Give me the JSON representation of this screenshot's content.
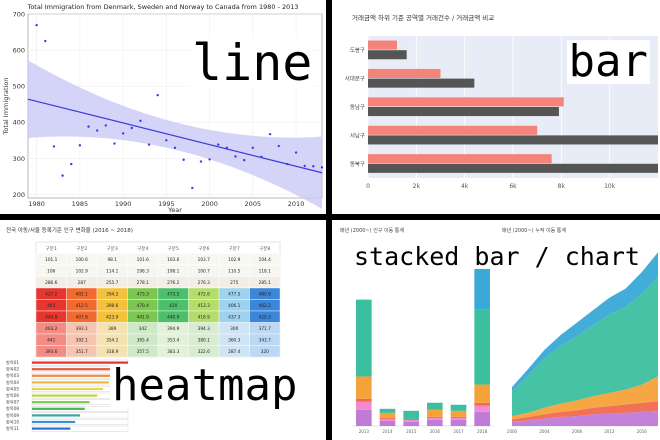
{
  "overlays": {
    "line": "line",
    "bar": "bar",
    "heatmap": "heatmap",
    "stacked": "stacked bar / chart"
  },
  "chart_data": [
    {
      "type": "scatter",
      "title": "Total Immigration from Denmark, Sweden and Norway to Canada from 1980 - 2013",
      "xlabel": "Year",
      "ylabel": "Total Immigration",
      "xlim": [
        1979,
        2013
      ],
      "ylim": [
        190,
        700
      ],
      "xticks": [
        1980,
        1985,
        1990,
        1995,
        2000,
        2005,
        2010
      ],
      "yticks": [
        200,
        300,
        400,
        500,
        600,
        700
      ],
      "x": [
        1980,
        1981,
        1982,
        1983,
        1984,
        1985,
        1986,
        1987,
        1988,
        1989,
        1990,
        1991,
        1992,
        1993,
        1994,
        1995,
        1996,
        1997,
        1998,
        1999,
        2000,
        2001,
        2002,
        2003,
        2004,
        2005,
        2006,
        2007,
        2008,
        2009,
        2010,
        2011,
        2012,
        2013
      ],
      "y": [
        669,
        625,
        333,
        252,
        284,
        336,
        388,
        377,
        391,
        341,
        369,
        384,
        404,
        338,
        475,
        350,
        329,
        296,
        218,
        291,
        297,
        338,
        329,
        305,
        295,
        329,
        304,
        367,
        334,
        284,
        316,
        279,
        278,
        275
      ],
      "trend": {
        "start": [
          1980,
          458
        ],
        "end": [
          2013,
          260
        ]
      },
      "colors": {
        "points": "#3b3be0",
        "trend": "#3a3adf",
        "band": "#c9c9f7"
      }
    },
    {
      "type": "bar",
      "orientation": "horizontal",
      "title": "거래금액 하위 기준 공역별 거래건수 / 거래금액 비교",
      "categories": [
        "도봉구",
        "서대문구",
        "동남구",
        "서남구",
        "동북구"
      ],
      "series": [
        {
          "values": [
            1200,
            3000,
            8100,
            7000,
            7600
          ],
          "color": "#f4837a"
        },
        {
          "values": [
            1600,
            4400,
            7900,
            12000,
            12000
          ],
          "color": "#555555"
        }
      ],
      "xlim": [
        0,
        12000
      ],
      "xticks": [
        0,
        2000,
        4000,
        6000,
        8000,
        10000
      ],
      "xtick_labels": [
        "0",
        "2k",
        "4k",
        "6k",
        "8k",
        "10k"
      ],
      "grid": true
    },
    {
      "type": "heatmap",
      "title": "전국 아동/서울 등록기준 인구 변화율 (2016 ~ 2018)",
      "columns": [
        "구분1",
        "구분2",
        "구분3",
        "구분4",
        "구분5",
        "구분6",
        "구분7",
        "구분8"
      ],
      "values": [
        [
          101.1,
          100.6,
          98.1,
          101.6,
          103.6,
          103.7,
          102.9,
          104.4
        ],
        [
          106.0,
          102.9,
          114.1,
          198.3,
          198.1,
          100.7,
          110.5,
          118.1
        ],
        [
          286.6,
          287.0,
          255.7,
          278.1,
          276.2,
          276.3,
          275.0,
          285.1
        ],
        [
          427.2,
          402.1,
          394.2,
          473.3,
          473.5,
          472.6,
          477.5,
          480.9
        ],
        [
          403.0,
          412.5,
          398.6,
          470.4,
          420.0,
          413.3,
          406.1,
          402.2
        ],
        [
          440.8,
          407.8,
          423.9,
          441.9,
          440.9,
          418.9,
          437.3,
          420.3
        ],
        [
          403.2,
          393.1,
          389.0,
          342.0,
          394.9,
          394.3,
          300.0,
          371.7
        ],
        [
          441.0,
          392.1,
          354.2,
          365.4,
          353.4,
          380.1,
          360.3,
          343.7
        ],
        [
          393.6,
          351.7,
          318.9,
          357.5,
          383.3,
          322.6,
          287.4,
          320.0
        ]
      ],
      "bars": [
        {
          "label": "항목01",
          "value": 100,
          "color": "#e03030"
        },
        {
          "label": "항목02",
          "value": 95,
          "color": "#e85a3a"
        },
        {
          "label": "항목03",
          "value": 88,
          "color": "#ef8b3c"
        },
        {
          "label": "항목04",
          "value": 80,
          "color": "#f2b93f"
        },
        {
          "label": "항목05",
          "value": 74,
          "color": "#e6d84a"
        },
        {
          "label": "항목06",
          "value": 68,
          "color": "#b8d648"
        },
        {
          "label": "항목07",
          "value": 60,
          "color": "#7cc94c"
        },
        {
          "label": "항목08",
          "value": 55,
          "color": "#4db35a"
        },
        {
          "label": "항목09",
          "value": 50,
          "color": "#3aa7a0"
        },
        {
          "label": "항목10",
          "value": 45,
          "color": "#3a8fd6"
        },
        {
          "label": "항목11",
          "value": 40,
          "color": "#2f6fd1"
        }
      ]
    },
    {
      "type": "bar",
      "stacked": true,
      "title": "매년 (2000~) 인구 이동 통계",
      "categories": [
        "2013",
        "2014",
        "2015",
        "2016",
        "2017",
        "2018"
      ],
      "series": [
        {
          "values": [
            16,
            5,
            4,
            6,
            6,
            14
          ],
          "color": "#c07ad8"
        },
        {
          "values": [
            8,
            2,
            2,
            2,
            2,
            6
          ],
          "color": "#f08bd0"
        },
        {
          "values": [
            3,
            1,
            1,
            1,
            1,
            3
          ],
          "color": "#f06a50"
        },
        {
          "values": [
            22,
            5,
            0,
            7,
            6,
            18
          ],
          "color": "#f6a23a"
        },
        {
          "values": [
            76,
            4,
            8,
            7,
            6,
            74
          ],
          "color": "#3cbf9f"
        },
        {
          "values": [
            0,
            0,
            0,
            0,
            0,
            41
          ],
          "color": "#39a9d8"
        }
      ],
      "ylim": [
        0,
        180
      ]
    },
    {
      "type": "area",
      "stacked": true,
      "title": "매년 (2000~) 누적 이동 통계",
      "x": [
        2000,
        2002,
        2004,
        2006,
        2008,
        2010,
        2012,
        2014,
        2016,
        2018
      ],
      "series": [
        {
          "values": [
            5,
            7,
            9,
            11,
            12,
            14,
            15,
            16,
            17,
            18
          ],
          "color": "#c07ad8"
        },
        {
          "values": [
            3,
            4,
            5,
            6,
            7,
            8,
            9,
            10,
            11,
            12
          ],
          "color": "#f06a50"
        },
        {
          "values": [
            4,
            5,
            8,
            10,
            12,
            14,
            16,
            18,
            22,
            30
          ],
          "color": "#f6a23a"
        },
        {
          "values": [
            30,
            45,
            60,
            70,
            78,
            86,
            95,
            100,
            110,
            120
          ],
          "color": "#3cbf9f"
        },
        {
          "values": [
            5,
            8,
            10,
            13,
            16,
            18,
            20,
            22,
            26,
            30
          ],
          "color": "#39a9d8"
        }
      ],
      "ylim": [
        0,
        220
      ]
    }
  ]
}
